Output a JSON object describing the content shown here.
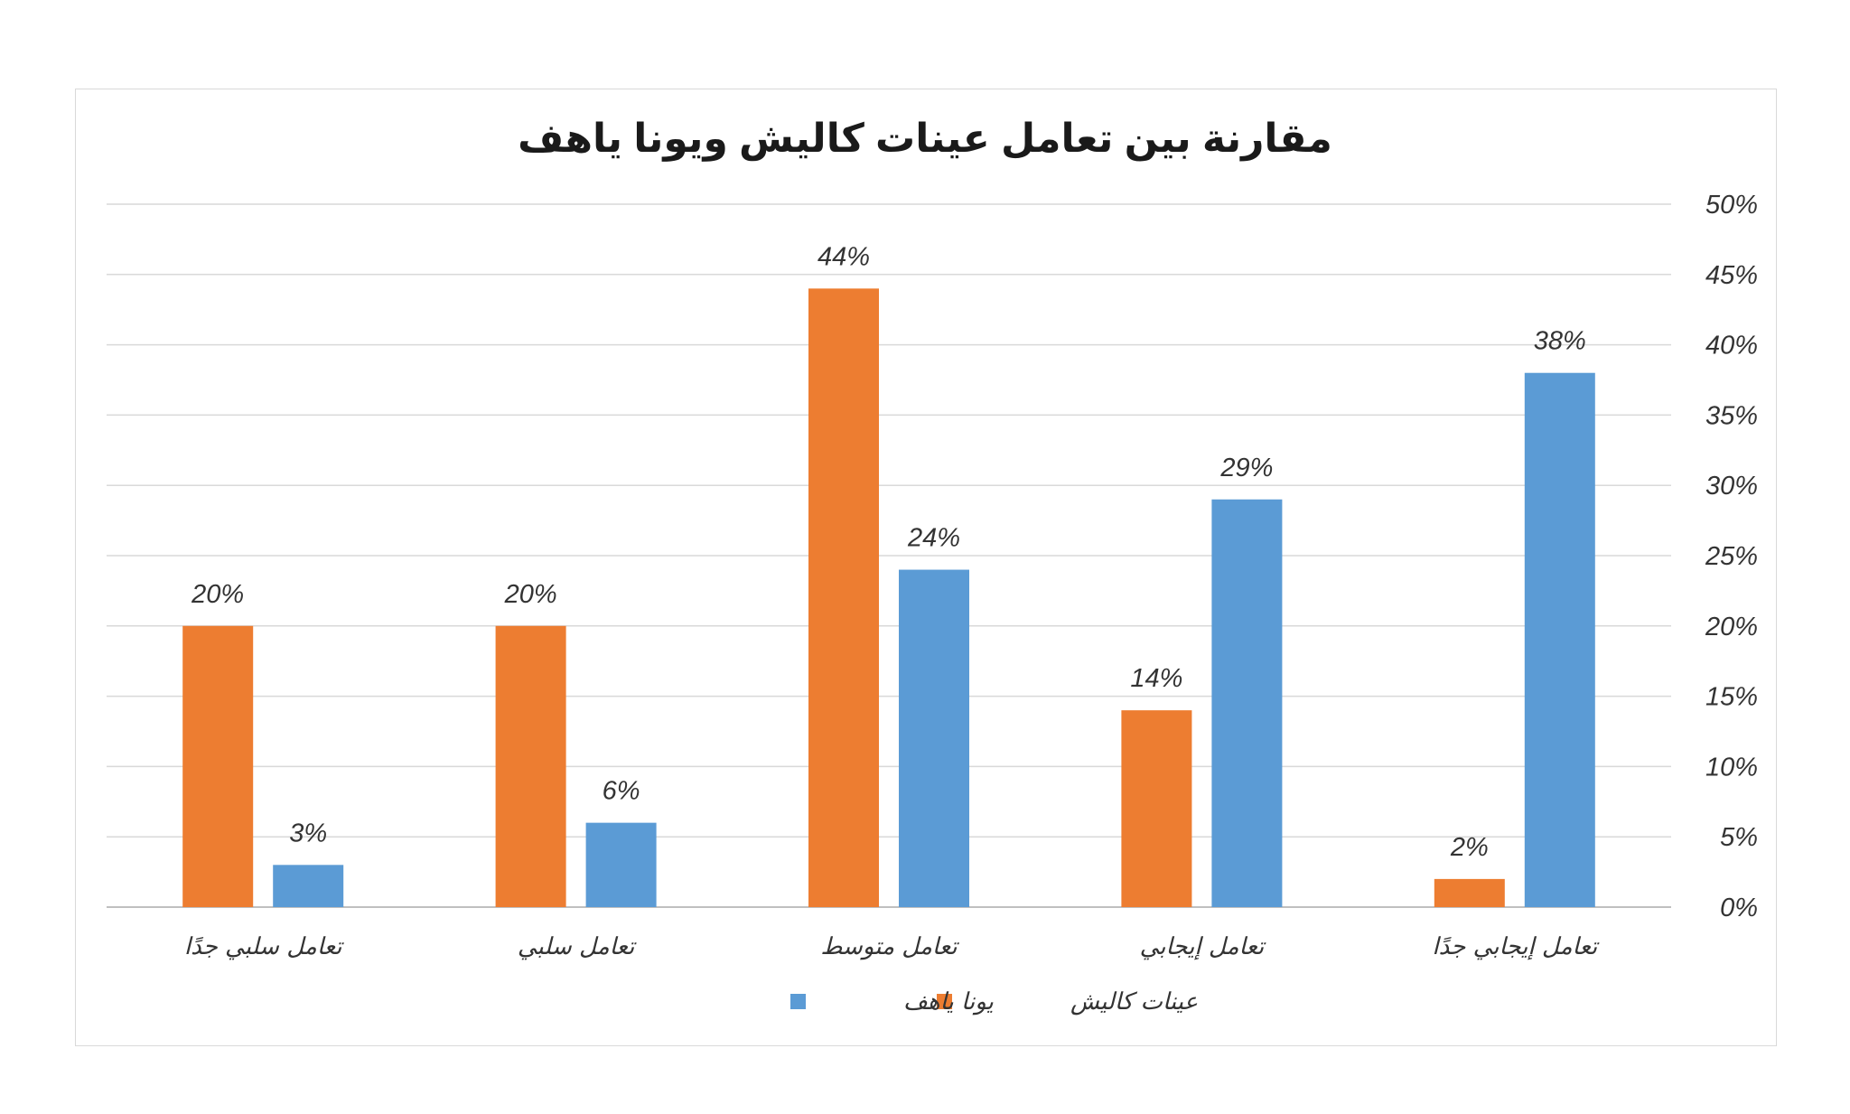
{
  "chart_data": {
    "type": "bar",
    "title": "مقارنة بين تعامل عينات كاليش ويونا ياهف",
    "categories": [
      "تعامل سلبي جدًا",
      "تعامل سلبي",
      "تعامل متوسط",
      "تعامل إيجابي",
      "تعامل إيجابي جدًا"
    ],
    "series": [
      {
        "name": "عينات كاليش",
        "values": [
          20,
          20,
          44,
          14,
          2
        ],
        "labels": [
          "20%",
          "20%",
          "44%",
          "14%",
          "2%"
        ],
        "color": "#ED7D31"
      },
      {
        "name": "يونا ياهف",
        "values": [
          3,
          6,
          24,
          29,
          38
        ],
        "labels": [
          "3%",
          "6%",
          "24%",
          "29%",
          "38%"
        ],
        "color": "#5B9BD5"
      }
    ],
    "ylim": [
      0,
      50
    ],
    "yticks": [
      "0%",
      "5%",
      "10%",
      "15%",
      "20%",
      "25%",
      "30%",
      "35%",
      "40%",
      "45%",
      "50%"
    ],
    "y_axis_side": "right",
    "grid": true,
    "legend": "bottom"
  }
}
